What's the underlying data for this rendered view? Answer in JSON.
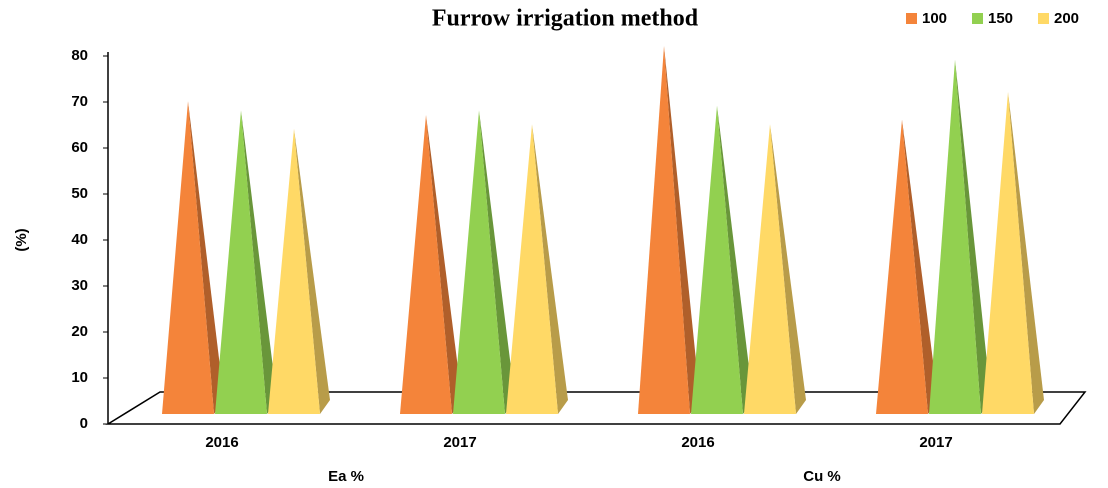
{
  "chart_data": {
    "type": "pyramid3d",
    "title": "Furrow irrigation method",
    "y_label": "(%)",
    "categories": [
      "2016",
      "2017",
      "2016",
      "2017"
    ],
    "group_labels": [
      "Ea %",
      "Cu %"
    ],
    "series": [
      {
        "name": "100",
        "color": "#f4843a",
        "values": [
          68,
          65,
          80,
          64
        ]
      },
      {
        "name": "150",
        "color": "#92d050",
        "values": [
          66,
          66,
          67,
          77
        ]
      },
      {
        "name": "200",
        "color": "#ffd966",
        "values": [
          62,
          63,
          63,
          70
        ]
      }
    ],
    "ylim": [
      0,
      80
    ],
    "yticks": [
      0,
      10,
      20,
      30,
      40,
      50,
      60,
      70,
      80
    ],
    "legend": "top-right"
  }
}
